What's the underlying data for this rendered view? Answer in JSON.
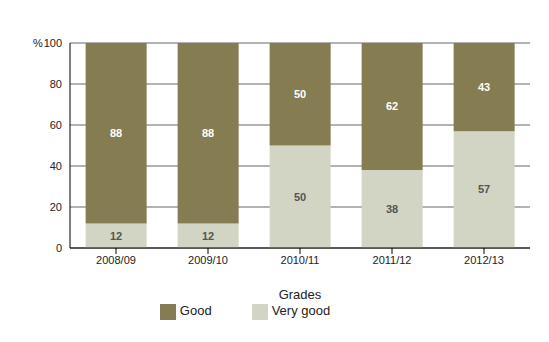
{
  "chart_data": {
    "type": "bar",
    "stacked": true,
    "y_label": "%",
    "x_label": "Grades",
    "categories": [
      "2008/09",
      "2009/10",
      "2010/11",
      "2011/12",
      "2012/13"
    ],
    "series": [
      {
        "name": "Very good",
        "color": "#d2d4c4",
        "values": [
          12,
          12,
          50,
          38,
          57
        ]
      },
      {
        "name": "Good",
        "color": "#857c52",
        "values": [
          88,
          88,
          50,
          62,
          43
        ]
      }
    ],
    "ylim": [
      0,
      100
    ],
    "yticks": [
      0,
      20,
      40,
      60,
      80,
      100
    ],
    "grid": true,
    "legend": "bottom",
    "data_labels": true
  }
}
